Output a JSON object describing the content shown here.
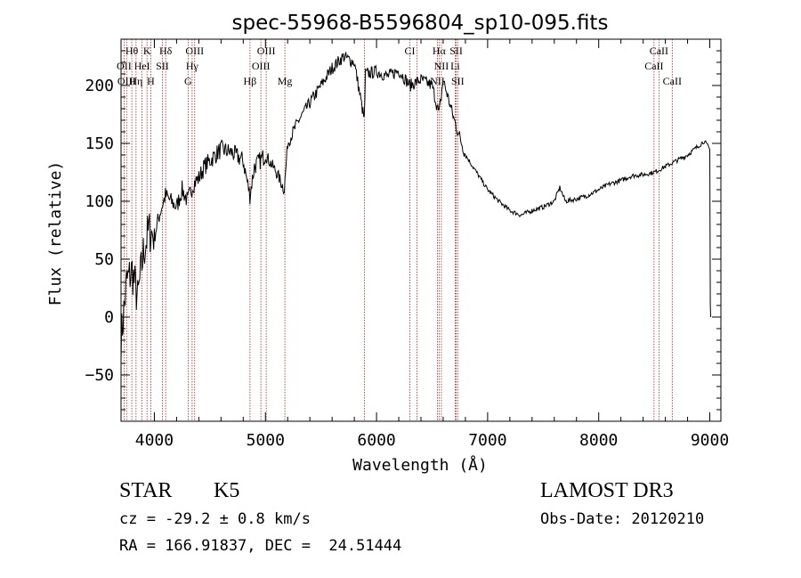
{
  "chart_data": {
    "type": "line",
    "title": "spec-55968-B5596804_sp10-095.fits",
    "xlabel": "Wavelength (Å)",
    "ylabel": "Flux (relative)",
    "xlim": [
      3700,
      9100
    ],
    "ylim": [
      -90,
      240
    ],
    "xticks": [
      4000,
      5000,
      6000,
      7000,
      8000,
      9000
    ],
    "yticks": [
      -50,
      0,
      50,
      100,
      150,
      200
    ],
    "grid": false,
    "line_color": "#000000",
    "marker_color": "#b22222",
    "series": [
      {
        "x": [
          3700,
          3750,
          3800,
          3850,
          3900,
          3950,
          4000,
          4050,
          4100,
          4150,
          4200,
          4250,
          4300,
          4350,
          4400,
          4450,
          4500,
          4600,
          4700,
          4800,
          4860,
          4900,
          5000,
          5100,
          5170,
          5200,
          5300,
          5400,
          5500,
          5600,
          5700,
          5800,
          5890,
          5900,
          6000,
          6100,
          6200,
          6300,
          6400,
          6500,
          6563,
          6600,
          6700,
          6800,
          6900,
          7000,
          7100,
          7200,
          7300,
          7400,
          7500,
          7600,
          7650,
          7700,
          7800,
          7900,
          8000,
          8100,
          8200,
          8300,
          8400,
          8500,
          8600,
          8700,
          8800,
          8900,
          8950,
          9000
        ],
        "y": [
          -20,
          30,
          40,
          15,
          55,
          75,
          70,
          90,
          105,
          100,
          95,
          110,
          100,
          115,
          120,
          130,
          135,
          145,
          142,
          135,
          105,
          130,
          140,
          125,
          110,
          150,
          170,
          185,
          200,
          215,
          225,
          220,
          170,
          210,
          212,
          208,
          213,
          200,
          205,
          200,
          175,
          205,
          170,
          140,
          125,
          110,
          100,
          92,
          88,
          92,
          95,
          100,
          112,
          100,
          102,
          105,
          110,
          115,
          118,
          122,
          123,
          125,
          130,
          135,
          140,
          148,
          152,
          145
        ]
      }
    ],
    "line_markers": [
      {
        "label": "Hθ",
        "x": 3797,
        "row": 1
      },
      {
        "label": "K",
        "x": 3934,
        "row": 1
      },
      {
        "label": "Hδ",
        "x": 4102,
        "row": 1
      },
      {
        "label": "OIII",
        "x": 4363,
        "row": 1
      },
      {
        "label": "OIII",
        "x": 5007,
        "row": 1
      },
      {
        "label": "CI",
        "x": 6300,
        "row": 1
      },
      {
        "label": "Hα",
        "x": 6563,
        "row": 1
      },
      {
        "label": "SII",
        "x": 6717,
        "row": 1
      },
      {
        "label": "CaII",
        "x": 8542,
        "row": 1
      },
      {
        "label": "OII",
        "x": 3727,
        "row": 2
      },
      {
        "label": "HeI",
        "x": 3889,
        "row": 2
      },
      {
        "label": "SII",
        "x": 4072,
        "row": 2
      },
      {
        "label": "Hγ",
        "x": 4340,
        "row": 2
      },
      {
        "label": "OIII",
        "x": 4959,
        "row": 2
      },
      {
        "label": "NII",
        "x": 6584,
        "row": 2
      },
      {
        "label": "Li",
        "x": 6708,
        "row": 2
      },
      {
        "label": "CaII",
        "x": 8498,
        "row": 2
      },
      {
        "label": "OIII",
        "x": 3750,
        "row": 3
      },
      {
        "label": "Hη",
        "x": 3835,
        "row": 3
      },
      {
        "label": "H",
        "x": 3968,
        "row": 3
      },
      {
        "label": "G",
        "x": 4304,
        "row": 3
      },
      {
        "label": "Hβ",
        "x": 4861,
        "row": 3
      },
      {
        "label": "Mg",
        "x": 5175,
        "row": 3
      },
      {
        "label": "NII",
        "x": 6548,
        "row": 3
      },
      {
        "label": "SII",
        "x": 6731,
        "row": 3
      },
      {
        "label": "CaII",
        "x": 8662,
        "row": 3
      }
    ],
    "extra_markers": [
      5890,
      6363
    ]
  },
  "info": {
    "object_class": "STAR",
    "subclass": "K5",
    "survey": "LAMOST DR3",
    "cz": "cz = -29.2 ± 0.8 km/s",
    "obs_date": "Obs-Date: 20120210",
    "coords": "RA = 166.91837, DEC =  24.51444"
  }
}
